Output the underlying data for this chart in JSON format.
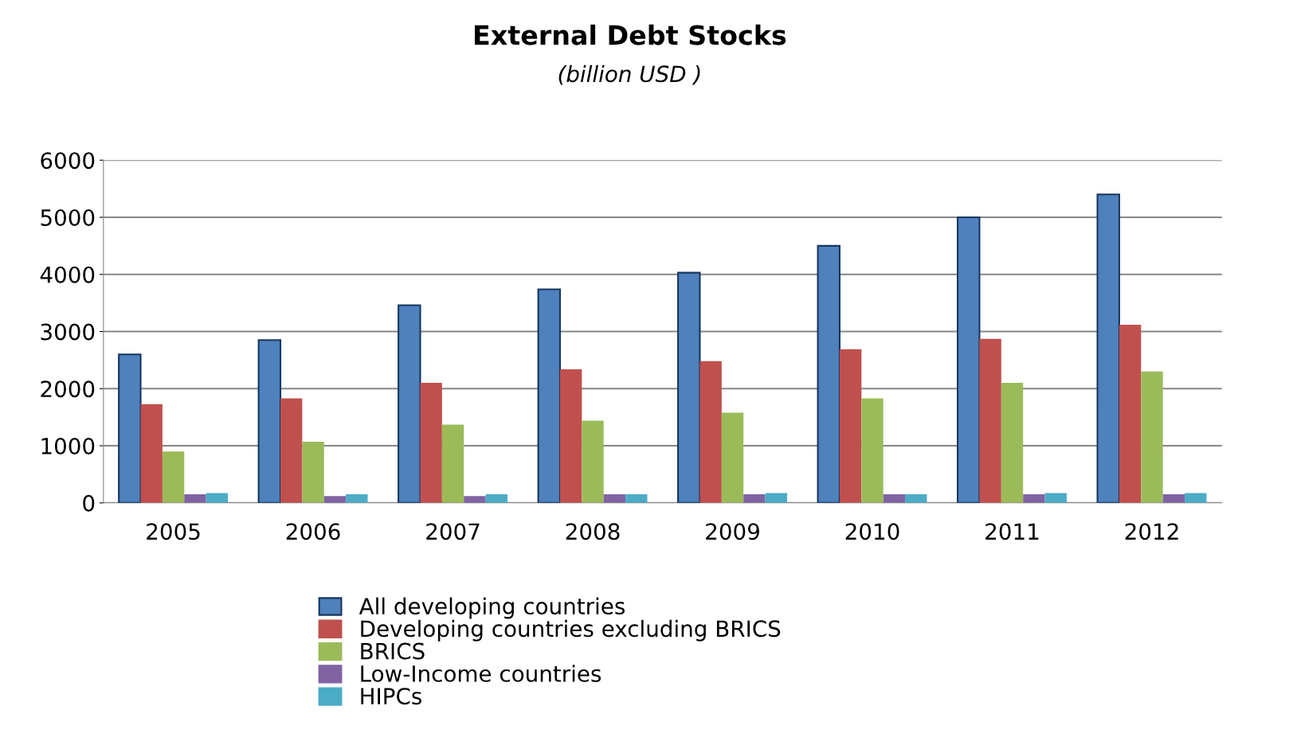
{
  "chart_data": {
    "type": "bar",
    "title": "External Debt Stocks",
    "subtitle": "(billion USD )",
    "categories": [
      "2005",
      "2006",
      "2007",
      "2008",
      "2009",
      "2010",
      "2011",
      "2012"
    ],
    "series": [
      {
        "name": "All developing countries",
        "color": "#4f81bd",
        "values": [
          2600,
          2850,
          3460,
          3740,
          4030,
          4500,
          5000,
          5400
        ]
      },
      {
        "name": "Developing countries excluding BRICS",
        "color": "#c0504d",
        "values": [
          1730,
          1830,
          2100,
          2340,
          2480,
          2690,
          2870,
          3120
        ]
      },
      {
        "name": "BRICS",
        "color": "#9bbb59",
        "values": [
          900,
          1070,
          1370,
          1440,
          1580,
          1830,
          2100,
          2300
        ]
      },
      {
        "name": "Low-Income countries",
        "color": "#8064a2",
        "values": [
          150,
          120,
          120,
          150,
          150,
          150,
          150,
          150
        ]
      },
      {
        "name": "HIPCs",
        "color": "#4bacc6",
        "values": [
          170,
          150,
          150,
          150,
          170,
          150,
          170,
          170
        ]
      }
    ],
    "ylim": [
      0,
      6000
    ],
    "yticks": [
      0,
      1000,
      2000,
      3000,
      4000,
      5000,
      6000
    ],
    "grid": "y",
    "legend": "bottom"
  }
}
